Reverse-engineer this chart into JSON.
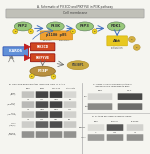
{
  "title_a": "A. Schematic of PIK3CD and PIKFYVE in PI3K pathway",
  "title_b": "B. CK2 and pCK2 protein level are high in T-ALL",
  "title_c": "C. Ikaros is highly phosphorylated in\nleukemia cells compared to BM2",
  "title_d": "D. CI-4686 decreases phospho-Ikaros",
  "bg_color": "#f5f5f0",
  "panel_a_bg": "#e8e8e0",
  "membrane_color": "#c0c0b8",
  "pip2_color": "#98c87a",
  "pi3k_color": "#98c87a",
  "pip3_color": "#98c87a",
  "pdk1_color": "#98c87a",
  "p110_color": "#f0a030",
  "akt_color": "#e8c820",
  "ikaros_color": "#6090d8",
  "pik3cd_color": "#d04820",
  "pikfyve_color": "#d04820",
  "pi3p_color": "#b89040",
  "pig3p1_color": "#c8a840",
  "arrow_blue": "#4070c0",
  "arrow_red": "#c02020",
  "band_dark": "#303030",
  "wb_bg": "#d8d8d0",
  "text_color": "#333333",
  "panel_border": "#999999"
}
